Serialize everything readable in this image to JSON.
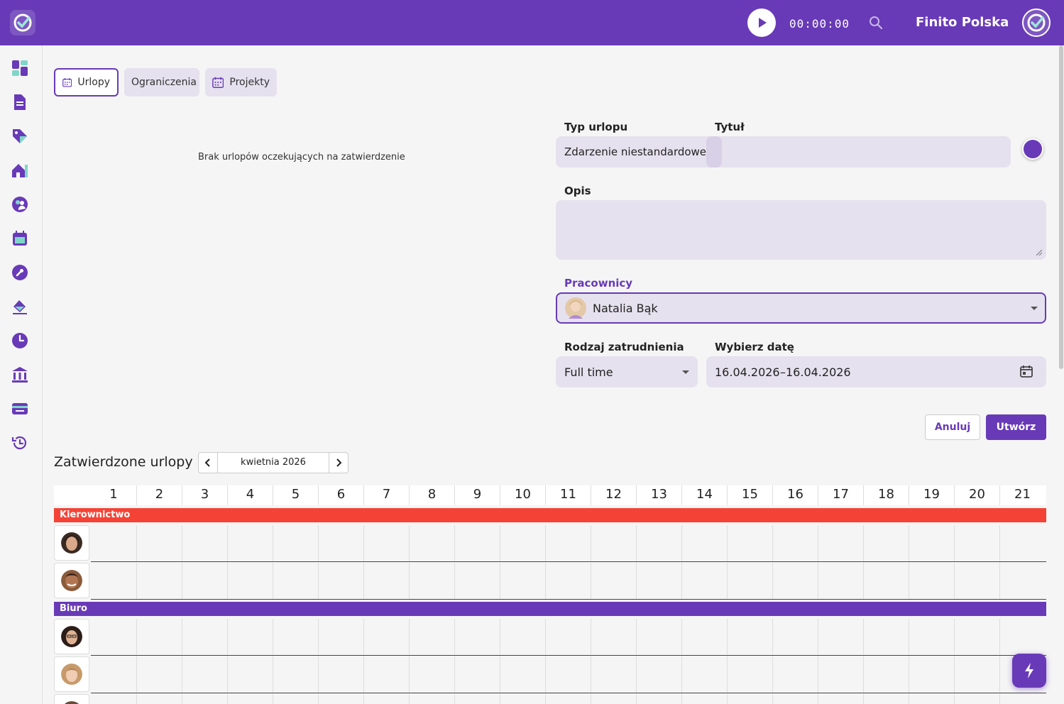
{
  "header": {
    "timer": "00:00:00",
    "company": "Finito Polska"
  },
  "tabs": [
    {
      "label": "Urlopy",
      "icon": "calendar-icon",
      "active": true
    },
    {
      "label": "Ograniczenia",
      "active": false
    },
    {
      "label": "Projekty",
      "icon": "calendar-icon",
      "active": false
    }
  ],
  "pending": {
    "empty_message": "Brak urlopów oczekujących na zatwierdzenie"
  },
  "form": {
    "leave_type_label": "Typ urlopu",
    "leave_type_value": "Zdarzenie niestandardowe",
    "title_label": "Tytuł",
    "title_value": "",
    "color": "#683ab7",
    "description_label": "Opis",
    "description_value": "",
    "employees_label": "Pracownicy",
    "employee_selected": "Natalia Bąk",
    "employment_label": "Rodzaj zatrudnienia",
    "employment_value": "Full time",
    "date_label": "Wybierz datę",
    "date_from": "16.04.2026",
    "date_to": "–16.04.2026",
    "cancel_label": "Anuluj",
    "create_label": "Utwórz"
  },
  "approved": {
    "title": "Zatwierdzone urlopy",
    "month": "kwietnia 2026",
    "days": [
      "1",
      "2",
      "3",
      "4",
      "5",
      "6",
      "7",
      "8",
      "9",
      "10",
      "11",
      "12",
      "13",
      "14",
      "15",
      "16",
      "17",
      "18",
      "19",
      "20",
      "21"
    ],
    "groups": [
      {
        "name": "Kierownictwo",
        "color": "#f44336",
        "employees": 2
      },
      {
        "name": "Biuro",
        "color": "#683ab7",
        "employees": 3
      }
    ]
  },
  "colors": {
    "primary": "#683ab7",
    "danger": "#f44336",
    "field_bg": "#e6e1ee"
  }
}
